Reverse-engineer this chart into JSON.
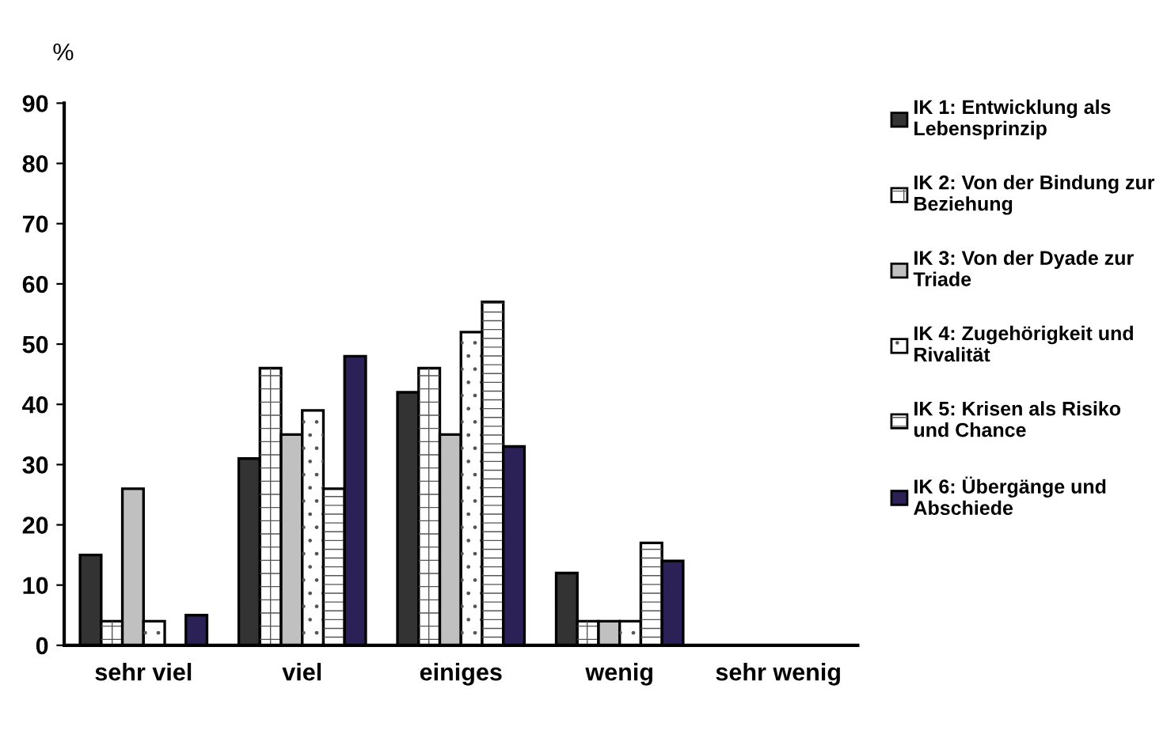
{
  "chart_data": {
    "type": "bar",
    "ylabel": "%",
    "categories": [
      "sehr viel",
      "viel",
      "einiges",
      "wenig",
      "sehr wenig"
    ],
    "series": [
      {
        "name": "IK 1: Entwicklung als Lebensprinzip",
        "color": "#333333",
        "values": [
          15,
          31,
          42,
          12,
          null
        ]
      },
      {
        "name": "IK 2: Von der Bindung zur Beziehung",
        "color": "#ffffff",
        "values": [
          4,
          46,
          46,
          4,
          null
        ]
      },
      {
        "name": "IK 3: Von der Dyade zur Triade",
        "color": "#c0c0c0",
        "values": [
          26,
          35,
          35,
          4,
          null
        ]
      },
      {
        "name": "IK 4: Zugehörigkeit und Rivalität",
        "color": "#ffffff",
        "values": [
          4,
          39,
          52,
          4,
          null
        ]
      },
      {
        "name": "IK 5: Krisen als Risiko und Chance",
        "color": "#ffffff",
        "values": [
          null,
          26,
          57,
          17,
          null
        ]
      },
      {
        "name": "IK 6: Übergänge und Abschiede",
        "color": "#2b2157",
        "values": [
          5,
          48,
          33,
          14,
          null
        ]
      }
    ],
    "ylim": [
      0,
      90
    ],
    "yticks": [
      0,
      10,
      20,
      30,
      40,
      50,
      60,
      70,
      80,
      90
    ],
    "grid": false,
    "legend": "right"
  }
}
